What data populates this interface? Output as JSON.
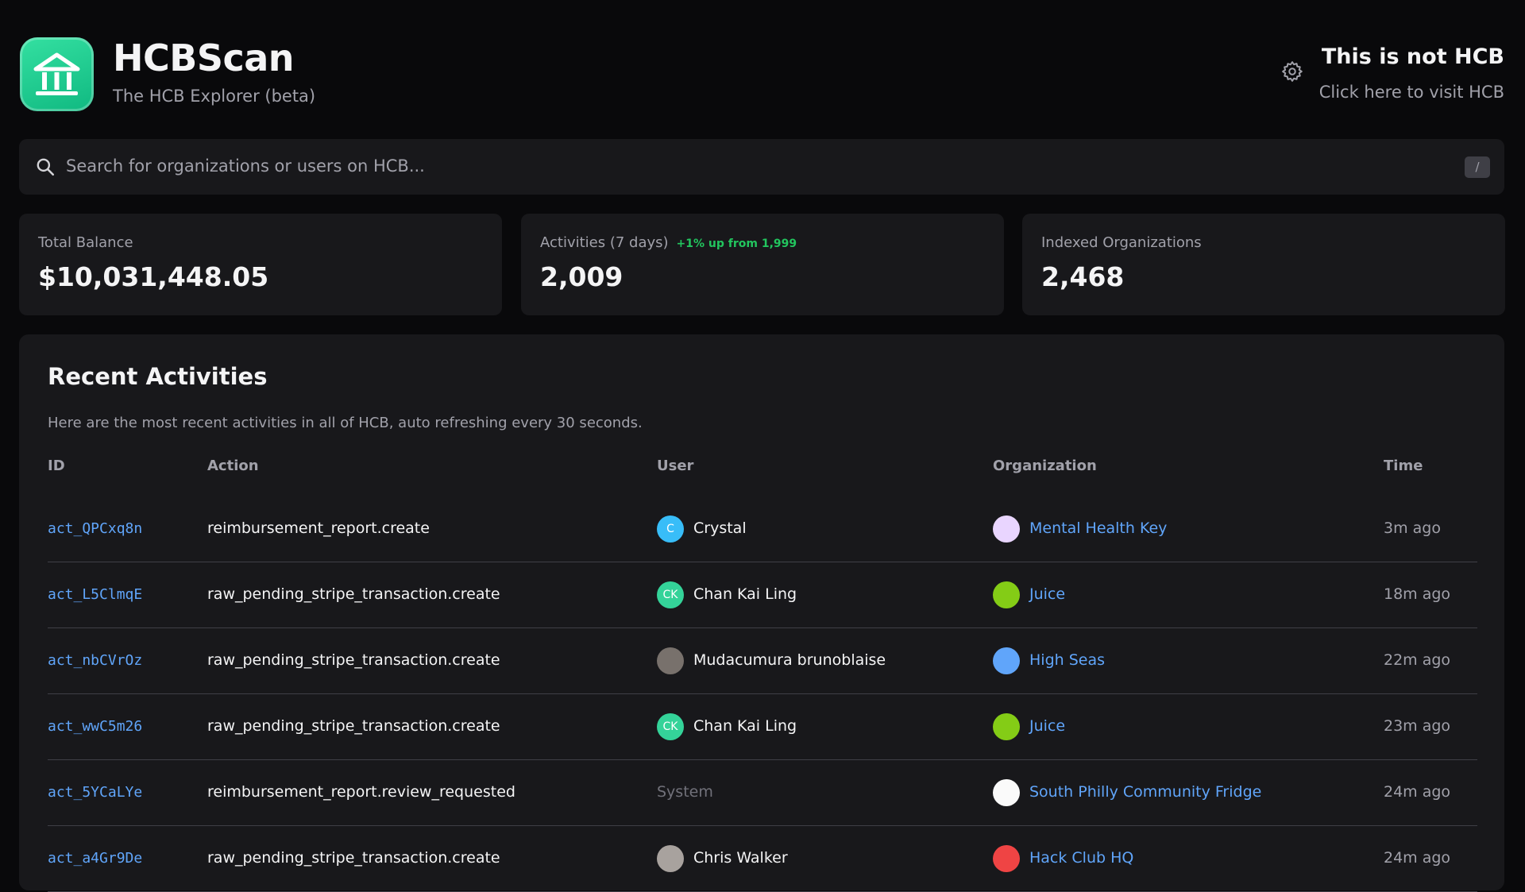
{
  "header": {
    "title": "HCBScan",
    "subtitle": "The HCB Explorer (beta)"
  },
  "hcb_link": {
    "title": "This is not HCB",
    "subtitle": "Click here to visit HCB"
  },
  "search": {
    "placeholder": "Search for organizations or users on HCB...",
    "shortcut": "/"
  },
  "stats": [
    {
      "label": "Total Balance",
      "value": "$10,031,448.05"
    },
    {
      "label": "Activities (7 days)",
      "note": "+1% up from 1,999",
      "value": "2,009"
    },
    {
      "label": "Indexed Organizations",
      "value": "2,468"
    }
  ],
  "activities": {
    "title": "Recent Activities",
    "description": "Here are the most recent activities in all of HCB, auto refreshing every 30 seconds.",
    "columns": [
      "ID",
      "Action",
      "User",
      "Organization",
      "Time"
    ],
    "rows": [
      {
        "id": "act_QPCxq8n",
        "action": "reimbursement_report.create",
        "user_initials": "C",
        "user": "Crystal",
        "organization": "Mental Health Key",
        "time": "3m ago"
      },
      {
        "id": "act_L5ClmqE",
        "action": "raw_pending_stripe_transaction.create",
        "user_initials": "CK",
        "user": "Chan Kai Ling",
        "organization": "Juice",
        "time": "18m ago"
      },
      {
        "id": "act_nbCVrOz",
        "action": "raw_pending_stripe_transaction.create",
        "user": "Mudacumura brunoblaise",
        "organization": "High Seas",
        "time": "22m ago"
      },
      {
        "id": "act_wwC5m26",
        "action": "raw_pending_stripe_transaction.create",
        "user_initials": "CK",
        "user": "Chan Kai Ling",
        "organization": "Juice",
        "time": "23m ago"
      },
      {
        "id": "act_5YCaLYe",
        "action": "reimbursement_report.review_requested",
        "user": "System",
        "organization": "South Philly Community Fridge",
        "time": "24m ago"
      },
      {
        "id": "act_a4Gr9De",
        "action": "raw_pending_stripe_transaction.create",
        "user": "Chris Walker",
        "organization": "Hack Club HQ",
        "time": "24m ago"
      }
    ]
  }
}
